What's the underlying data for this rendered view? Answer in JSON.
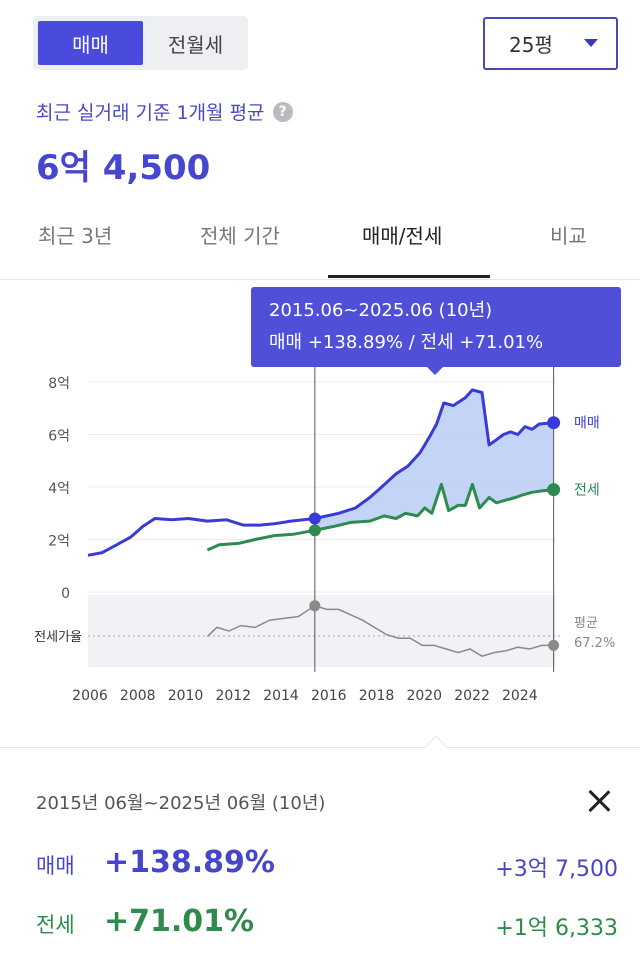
{
  "segment": {
    "active": "매매",
    "inactive": "전월세"
  },
  "size_select": {
    "value": "25평"
  },
  "subtitle": "최근 실거래 기준 1개월 평균",
  "price": "6억 4,500",
  "tabs": [
    {
      "label": "최근 3년"
    },
    {
      "label": "전체 기간"
    },
    {
      "label": "매매/전세"
    },
    {
      "label": "비교"
    }
  ],
  "active_tab": "매매/전세",
  "tooltip": {
    "line1": "2015.06~2025.06 (10년)",
    "line2": "매매 +138.89%  /  전세 +71.01%"
  },
  "colors": {
    "sale": "#3a3ad6",
    "sale_fill": "#b8ccf5",
    "jeonse": "#2e8b4f",
    "ratio": "#8a8a8a",
    "accent": "#4a4adc"
  },
  "chart_data": {
    "type": "line",
    "x_ticks": [
      "2006",
      "2008",
      "2010",
      "2012",
      "2014",
      "2016",
      "2018",
      "2020",
      "2022",
      "2024"
    ],
    "y_ticks": [
      "8억",
      "6억",
      "4억",
      "2억",
      "0"
    ],
    "ylim": [
      0,
      8
    ],
    "xlim": [
      2006.0,
      2025.6
    ],
    "selection_range": [
      2015.5,
      2025.5
    ],
    "series": [
      {
        "name": "매매",
        "points": [
          [
            2006.0,
            1.4
          ],
          [
            2006.6,
            1.5
          ],
          [
            2007.2,
            1.8
          ],
          [
            2007.8,
            2.1
          ],
          [
            2008.3,
            2.5
          ],
          [
            2008.8,
            2.8
          ],
          [
            2009.5,
            2.75
          ],
          [
            2010.2,
            2.8
          ],
          [
            2011.0,
            2.7
          ],
          [
            2011.8,
            2.75
          ],
          [
            2012.5,
            2.55
          ],
          [
            2013.2,
            2.55
          ],
          [
            2013.8,
            2.6
          ],
          [
            2014.5,
            2.7
          ],
          [
            2015.5,
            2.8
          ],
          [
            2016.5,
            3.0
          ],
          [
            2017.2,
            3.2
          ],
          [
            2017.8,
            3.6
          ],
          [
            2018.3,
            4.0
          ],
          [
            2018.9,
            4.5
          ],
          [
            2019.4,
            4.8
          ],
          [
            2019.9,
            5.3
          ],
          [
            2020.3,
            5.9
          ],
          [
            2020.6,
            6.4
          ],
          [
            2020.9,
            7.2
          ],
          [
            2021.3,
            7.1
          ],
          [
            2021.8,
            7.4
          ],
          [
            2022.1,
            7.7
          ],
          [
            2022.5,
            7.6
          ],
          [
            2022.8,
            5.6
          ],
          [
            2023.1,
            5.8
          ],
          [
            2023.4,
            6.0
          ],
          [
            2023.7,
            6.1
          ],
          [
            2024.0,
            6.0
          ],
          [
            2024.3,
            6.3
          ],
          [
            2024.6,
            6.2
          ],
          [
            2024.9,
            6.4
          ],
          [
            2025.5,
            6.45
          ]
        ],
        "end_label": "매매"
      },
      {
        "name": "전세",
        "points": [
          [
            2011.0,
            1.6
          ],
          [
            2011.5,
            1.8
          ],
          [
            2012.3,
            1.85
          ],
          [
            2013.0,
            2.0
          ],
          [
            2013.8,
            2.15
          ],
          [
            2014.6,
            2.2
          ],
          [
            2015.5,
            2.35
          ],
          [
            2016.3,
            2.5
          ],
          [
            2017.0,
            2.65
          ],
          [
            2017.8,
            2.7
          ],
          [
            2018.4,
            2.9
          ],
          [
            2018.9,
            2.8
          ],
          [
            2019.3,
            3.0
          ],
          [
            2019.8,
            2.9
          ],
          [
            2020.1,
            3.2
          ],
          [
            2020.4,
            3.0
          ],
          [
            2020.8,
            4.1
          ],
          [
            2021.1,
            3.1
          ],
          [
            2021.5,
            3.3
          ],
          [
            2021.8,
            3.3
          ],
          [
            2022.1,
            4.1
          ],
          [
            2022.4,
            3.2
          ],
          [
            2022.8,
            3.6
          ],
          [
            2023.1,
            3.4
          ],
          [
            2023.5,
            3.5
          ],
          [
            2023.9,
            3.6
          ],
          [
            2024.2,
            3.7
          ],
          [
            2024.6,
            3.8
          ],
          [
            2025.0,
            3.85
          ],
          [
            2025.5,
            3.9
          ]
        ],
        "end_label": "전세"
      },
      {
        "name": "전세가율",
        "points": [
          [
            2011.0,
            67
          ],
          [
            2011.4,
            72
          ],
          [
            2011.9,
            70
          ],
          [
            2012.4,
            73
          ],
          [
            2013.0,
            72
          ],
          [
            2013.6,
            76
          ],
          [
            2014.2,
            77
          ],
          [
            2014.8,
            78
          ],
          [
            2015.5,
            84
          ],
          [
            2016.0,
            82
          ],
          [
            2016.5,
            82
          ],
          [
            2017.0,
            79
          ],
          [
            2017.5,
            76
          ],
          [
            2018.0,
            72
          ],
          [
            2018.5,
            68
          ],
          [
            2019.0,
            66
          ],
          [
            2019.5,
            66
          ],
          [
            2020.0,
            62
          ],
          [
            2020.5,
            62
          ],
          [
            2021.0,
            60
          ],
          [
            2021.5,
            58
          ],
          [
            2022.0,
            60
          ],
          [
            2022.5,
            56
          ],
          [
            2023.0,
            58
          ],
          [
            2023.5,
            59
          ],
          [
            2024.0,
            61
          ],
          [
            2024.5,
            60
          ],
          [
            2025.0,
            62
          ],
          [
            2025.5,
            62
          ]
        ],
        "end_label": "평균",
        "end_value": "67.2%"
      }
    ],
    "ratio_axis_label": "전세가율"
  },
  "summary": {
    "period": "2015년 06월~2025년 06월 (10년)",
    "sale": {
      "label": "매매",
      "percent": "+138.89%",
      "amount": "+3억 7,500"
    },
    "jeonse": {
      "label": "전세",
      "percent": "+71.01%",
      "amount": "+1억 6,333"
    }
  }
}
